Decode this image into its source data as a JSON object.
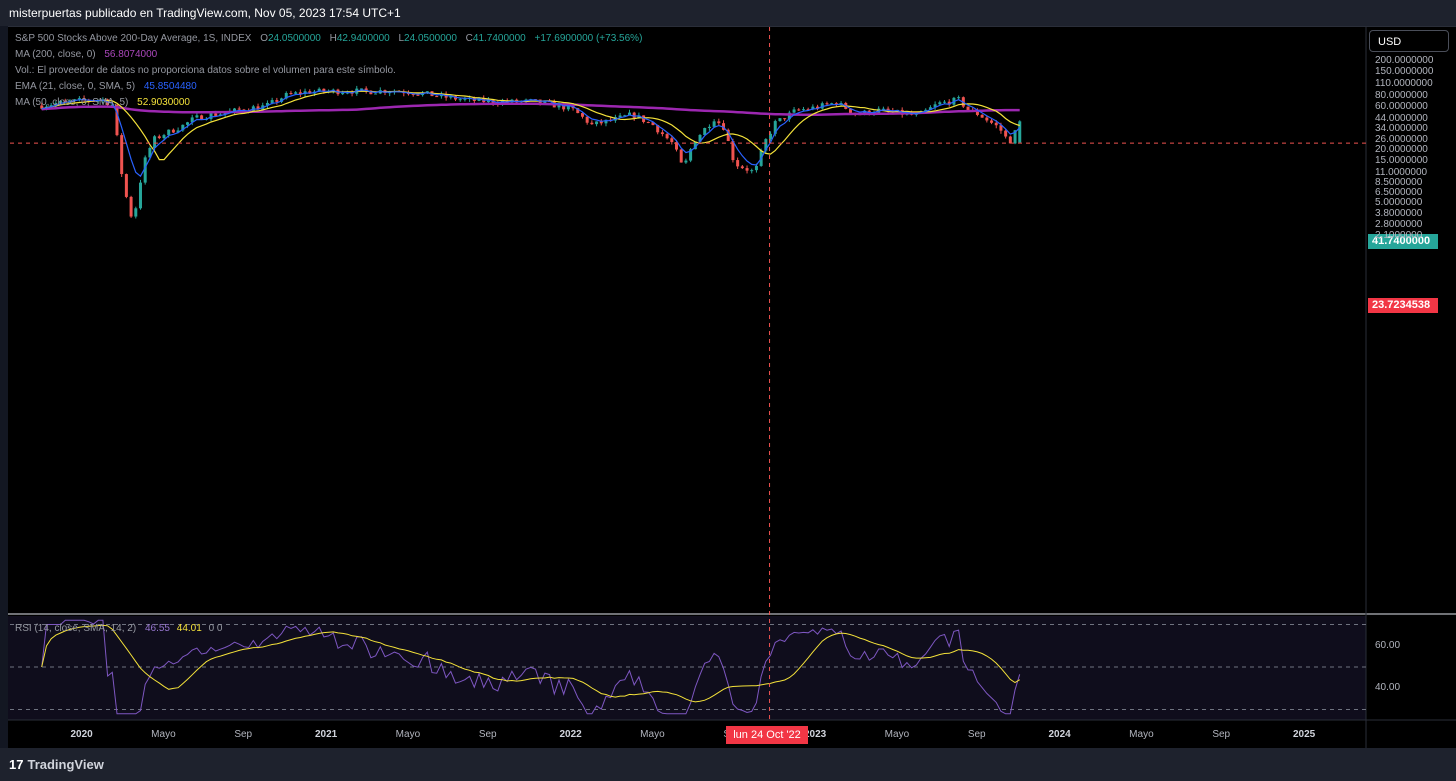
{
  "header": {
    "title": "misterpuertas publicado en TradingView.com, Nov 05, 2023 17:54 UTC+1"
  },
  "footer": {
    "brand": "TradingView"
  },
  "legend": {
    "symbol": "S&P 500 Stocks Above 200-Day Average, 1S, INDEX",
    "o_label": "O",
    "o": "24.0500000",
    "h_label": "H",
    "h": "42.9400000",
    "l_label": "L",
    "l": "24.0500000",
    "c_label": "C",
    "c": "41.7400000",
    "change": "+17.6900000 (+73.56%)",
    "ma200_label": "MA (200, close, 0)",
    "ma200": "56.8074000",
    "vol_note": "Vol.: El proveedor de datos no proporciona datos sobre el volumen para este símbolo.",
    "ema21_label": "EMA (21, close, 0, SMA, 5)",
    "ema21": "45.8504480",
    "ma50_label": "MA (50, close, 0, SMA, 5)",
    "ma50": "52.9030000",
    "rsi_label": "RSI (14, close, SMA, 14, 2)",
    "rsi": "46.55",
    "rsi_ma": "44.01",
    "rsi_extra": "0  0"
  },
  "currency_button": "USD",
  "price_tags": {
    "last": "41.7400000",
    "cursor": "23.7234538"
  },
  "time_tag": "lun 24 Oct '22",
  "colors": {
    "up": "#26a69a",
    "down": "#ef5350",
    "ma200": "#9c27b0",
    "ema21": "#2962ff",
    "ma50": "#f4e23a",
    "rsi": "#7e57c2",
    "rsi_ma": "#f4e23a"
  },
  "chart_data": {
    "type": "candlestick",
    "scale": "log",
    "ylim": [
      1.8,
      230
    ],
    "y_ticks": [
      "200.0000000",
      "150.0000000",
      "110.0000000",
      "80.0000000",
      "60.0000000",
      "44.0000000",
      "34.0000000",
      "26.0000000",
      "20.0000000",
      "15.0000000",
      "11.0000000",
      "8.5000000",
      "6.5000000",
      "5.0000000",
      "3.8000000",
      "2.8000000",
      "2.1000000"
    ],
    "x_ticks": [
      "2020",
      "Mayo",
      "Sep",
      "2021",
      "Mayo",
      "Sep",
      "2022",
      "Mayo",
      "Sep",
      "2023",
      "Mayo",
      "Sep",
      "2024",
      "Mayo",
      "Sep",
      "2025"
    ],
    "close_path": [
      [
        "2019-11",
        63
      ],
      [
        "2019-12",
        68
      ],
      [
        "2020-01",
        72
      ],
      [
        "2020-02",
        73
      ],
      [
        "2020-02",
        64
      ],
      [
        "2020-03",
        8
      ],
      [
        "2020-03",
        3
      ],
      [
        "2020-04",
        14
      ],
      [
        "2020-04",
        26
      ],
      [
        "2020-05",
        30
      ],
      [
        "2020-06",
        38
      ],
      [
        "2020-06",
        45
      ],
      [
        "2020-07",
        48
      ],
      [
        "2020-08",
        52
      ],
      [
        "2020-09",
        58
      ],
      [
        "2020-10",
        62
      ],
      [
        "2020-11",
        82
      ],
      [
        "2020-12",
        90
      ],
      [
        "2021-01",
        91
      ],
      [
        "2021-02",
        92
      ],
      [
        "2021-03",
        91
      ],
      [
        "2021-04",
        93
      ],
      [
        "2021-05",
        90
      ],
      [
        "2021-06",
        84
      ],
      [
        "2021-07",
        77
      ],
      [
        "2021-08",
        72
      ],
      [
        "2021-09",
        70
      ],
      [
        "2021-10",
        69
      ],
      [
        "2021-11",
        70
      ],
      [
        "2021-12",
        65
      ],
      [
        "2022-01",
        58
      ],
      [
        "2022-02",
        38
      ],
      [
        "2022-03",
        43
      ],
      [
        "2022-04",
        50
      ],
      [
        "2022-05",
        38
      ],
      [
        "2022-06",
        23
      ],
      [
        "2022-06",
        12
      ],
      [
        "2022-07",
        25
      ],
      [
        "2022-08",
        45
      ],
      [
        "2022-08",
        36
      ],
      [
        "2022-09",
        14
      ],
      [
        "2022-10",
        11
      ],
      [
        "2022-10",
        24
      ],
      [
        "2022-11",
        40
      ],
      [
        "2022-12",
        55
      ],
      [
        "2023-01",
        60
      ],
      [
        "2023-02",
        68
      ],
      [
        "2023-03",
        50
      ],
      [
        "2023-04",
        56
      ],
      [
        "2023-05",
        52
      ],
      [
        "2023-06",
        48
      ],
      [
        "2023-07",
        66
      ],
      [
        "2023-08",
        73
      ],
      [
        "2023-08",
        56
      ],
      [
        "2023-09",
        50
      ],
      [
        "2023-10",
        35
      ],
      [
        "2023-10",
        24
      ],
      [
        "2023-11",
        41.74
      ]
    ],
    "series": [
      {
        "name": "MA (200, close, 0)",
        "last": 56.8074
      },
      {
        "name": "EMA (21, close, 0, SMA, 5)",
        "last": 45.850448
      },
      {
        "name": "MA (50, close, 0, SMA, 5)",
        "last": 52.903
      }
    ],
    "last_close": 41.74,
    "cursor_price": 23.7234538,
    "cursor_date": "lun 24 Oct '22",
    "rsi": {
      "ylim": [
        26,
        74
      ],
      "y_ticks": [
        "60.00",
        "40.00"
      ],
      "bands": [
        70,
        50,
        30
      ],
      "last": 46.55,
      "ma_last": 44.01
    }
  }
}
